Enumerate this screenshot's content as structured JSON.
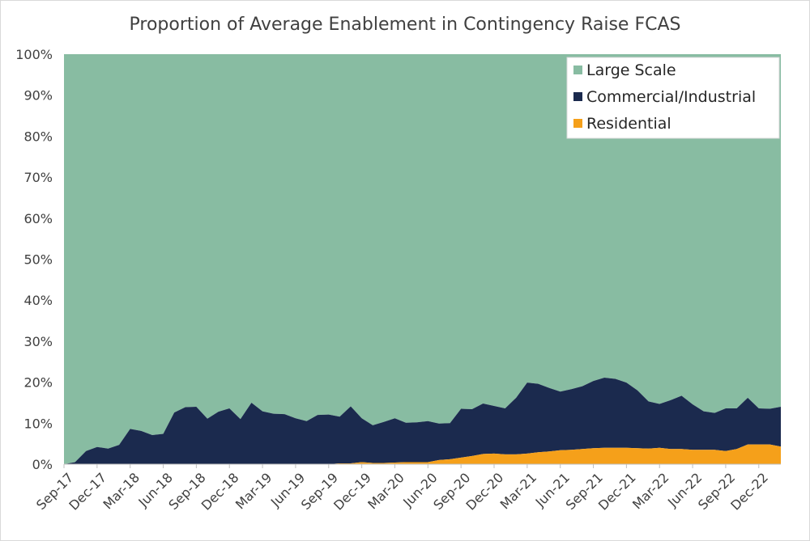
{
  "chart_data": {
    "type": "area",
    "stacked": true,
    "percent": true,
    "title": "Proportion of Average Enablement in Contingency Raise FCAS",
    "xlabel": "",
    "ylabel": "",
    "ylim": [
      0,
      100
    ],
    "y_ticks": [
      "0%",
      "10%",
      "20%",
      "30%",
      "40%",
      "50%",
      "60%",
      "70%",
      "80%",
      "90%",
      "100%"
    ],
    "x_tick_labels": [
      "Sep-17",
      "Dec-17",
      "Mar-18",
      "Jun-18",
      "Sep-18",
      "Dec-18",
      "Mar-19",
      "Jun-19",
      "Sep-19",
      "Dec-19",
      "Mar-20",
      "Jun-20",
      "Sep-20",
      "Dec-20",
      "Mar-21",
      "Jun-21",
      "Sep-21",
      "Dec-21",
      "Mar-22",
      "Jun-22",
      "Sep-22",
      "Dec-22"
    ],
    "x": [
      "Sep-17",
      "Oct-17",
      "Nov-17",
      "Dec-17",
      "Jan-18",
      "Feb-18",
      "Mar-18",
      "Apr-18",
      "May-18",
      "Jun-18",
      "Jul-18",
      "Aug-18",
      "Sep-18",
      "Oct-18",
      "Nov-18",
      "Dec-18",
      "Jan-19",
      "Feb-19",
      "Mar-19",
      "Apr-19",
      "May-19",
      "Jun-19",
      "Jul-19",
      "Aug-19",
      "Sep-19",
      "Oct-19",
      "Nov-19",
      "Dec-19",
      "Jan-20",
      "Feb-20",
      "Mar-20",
      "Apr-20",
      "May-20",
      "Jun-20",
      "Jul-20",
      "Aug-20",
      "Sep-20",
      "Oct-20",
      "Nov-20",
      "Dec-20",
      "Jan-21",
      "Feb-21",
      "Mar-21",
      "Apr-21",
      "May-21",
      "Jun-21",
      "Jul-21",
      "Aug-21",
      "Sep-21",
      "Oct-21",
      "Nov-21",
      "Dec-21",
      "Jan-22",
      "Feb-22",
      "Mar-22",
      "Apr-22",
      "May-22",
      "Jun-22",
      "Jul-22",
      "Aug-22",
      "Sep-22",
      "Oct-22",
      "Nov-22",
      "Dec-22",
      "Jan-23",
      "Feb-23"
    ],
    "legend_position": "top-right",
    "grid": false,
    "series": [
      {
        "name": "Residential",
        "color": "#f5a01a",
        "values": [
          0,
          0,
          0,
          0,
          0,
          0,
          0,
          0,
          0,
          0,
          0,
          0,
          0,
          0,
          0,
          0,
          0,
          0,
          0,
          0,
          0,
          0,
          0,
          0,
          0,
          0.2,
          0.2,
          0.5,
          0.3,
          0.3,
          0.4,
          0.5,
          0.5,
          0.5,
          1.0,
          1.2,
          1.6,
          2.0,
          2.5,
          2.6,
          2.4,
          2.4,
          2.6,
          2.9,
          3.1,
          3.4,
          3.5,
          3.7,
          3.9,
          4.0,
          4.0,
          4.0,
          3.9,
          3.8,
          4.0,
          3.7,
          3.7,
          3.5,
          3.5,
          3.5,
          3.2,
          3.7,
          4.8,
          4.8,
          4.8,
          4.3
        ]
      },
      {
        "name": "Commercial/Industrial",
        "color": "#1b2a4e",
        "values": [
          0,
          0.5,
          3.2,
          4.2,
          3.8,
          4.7,
          8.6,
          8.1,
          7.1,
          7.4,
          12.6,
          13.9,
          14.0,
          11.1,
          12.8,
          13.6,
          11.0,
          15.0,
          12.9,
          12.3,
          12.2,
          11.2,
          10.5,
          12.0,
          12.1,
          11.4,
          13.9,
          10.7,
          9.2,
          10.0,
          10.8,
          9.6,
          9.7,
          10.0,
          8.9,
          8.8,
          11.9,
          11.4,
          12.3,
          11.6,
          11.2,
          13.8,
          17.3,
          16.7,
          15.5,
          14.3,
          14.8,
          15.3,
          16.4,
          17.1,
          16.8,
          15.9,
          14.1,
          11.5,
          10.7,
          11.9,
          13.0,
          11.1,
          9.4,
          9.0,
          10.4,
          9.9,
          11.4,
          8.8,
          8.7,
          9.7
        ]
      },
      {
        "name": "Large Scale",
        "color": "#88bca2",
        "values": [
          100,
          99.5,
          96.8,
          95.8,
          96.2,
          95.3,
          91.4,
          91.9,
          92.9,
          92.6,
          87.4,
          86.1,
          86.0,
          88.9,
          87.2,
          86.4,
          89.0,
          85.0,
          87.1,
          87.7,
          87.8,
          88.8,
          89.5,
          88.0,
          87.9,
          88.4,
          85.9,
          88.8,
          90.5,
          89.7,
          88.8,
          89.9,
          89.8,
          89.5,
          90.1,
          90.0,
          86.5,
          86.6,
          85.2,
          85.8,
          86.4,
          83.8,
          80.1,
          80.4,
          81.4,
          82.3,
          81.7,
          81.0,
          79.7,
          78.9,
          79.2,
          80.1,
          82.0,
          84.7,
          85.3,
          84.4,
          83.3,
          85.4,
          87.1,
          87.5,
          86.4,
          86.4,
          83.8,
          86.4,
          86.5,
          86.0
        ]
      }
    ]
  }
}
